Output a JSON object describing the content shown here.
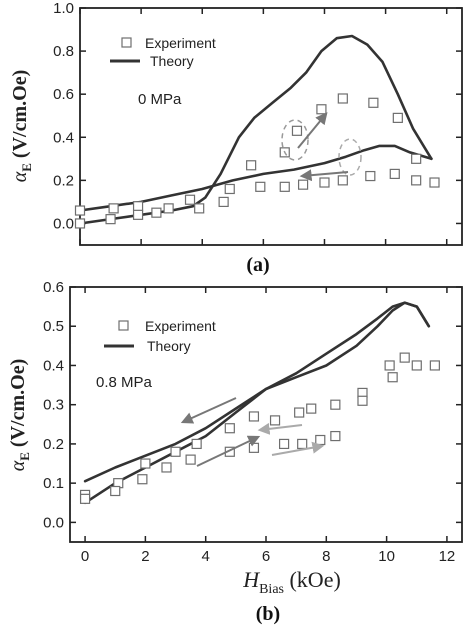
{
  "chart_data": [
    {
      "type": "line",
      "panel_label": "(a)",
      "annotation": "0 MPa",
      "ylabel_symbol": "α",
      "ylabel_sub": "E",
      "ylabel_unit": "(V/cm.Oe)",
      "xlim": [
        0,
        12.5
      ],
      "ylim": [
        -0.1,
        1.0
      ],
      "yticks": [
        0.0,
        0.2,
        0.4,
        0.6,
        0.8,
        1.0
      ],
      "ytick_labels": [
        "0.0",
        "0.2",
        "0.4",
        "0.6",
        "0.8",
        "1.0"
      ],
      "xticks": [
        0,
        2,
        4,
        6,
        8,
        10,
        12
      ],
      "legend": {
        "position": "top-left",
        "items": [
          "Experiment",
          "Theory"
        ]
      },
      "series": [
        {
          "name": "Experiment",
          "marker": "open-square",
          "points": [
            [
              0,
              0.06
            ],
            [
              1.1,
              0.07
            ],
            [
              1.9,
              0.08
            ],
            [
              2.9,
              0.07
            ],
            [
              3.6,
              0.11
            ],
            [
              3.9,
              0.07
            ],
            [
              0,
              0.0
            ],
            [
              1.0,
              0.02
            ],
            [
              1.9,
              0.04
            ],
            [
              2.5,
              0.05
            ],
            [
              4.7,
              0.1
            ],
            [
              5.6,
              0.27
            ],
            [
              6.7,
              0.33
            ],
            [
              7.1,
              0.43
            ],
            [
              7.9,
              0.53
            ],
            [
              8.6,
              0.58
            ],
            [
              9.6,
              0.56
            ],
            [
              10.4,
              0.49
            ],
            [
              11.0,
              0.3
            ],
            [
              11.6,
              0.19
            ],
            [
              11.0,
              0.2
            ],
            [
              10.3,
              0.23
            ],
            [
              9.5,
              0.22
            ],
            [
              8.6,
              0.2
            ],
            [
              8.0,
              0.19
            ],
            [
              7.3,
              0.18
            ],
            [
              6.7,
              0.17
            ],
            [
              5.9,
              0.17
            ],
            [
              4.9,
              0.16
            ]
          ]
        },
        {
          "name": "Theory",
          "style": "solid",
          "curves": [
            [
              [
                0,
                0.06
              ],
              [
                1,
                0.08
              ],
              [
                2,
                0.1
              ],
              [
                3,
                0.13
              ],
              [
                4,
                0.16
              ],
              [
                5,
                0.2
              ],
              [
                6,
                0.23
              ],
              [
                7,
                0.25
              ],
              [
                8,
                0.28
              ],
              [
                8.7,
                0.31
              ],
              [
                9.3,
                0.34
              ],
              [
                9.8,
                0.36
              ],
              [
                10.3,
                0.36
              ],
              [
                10.8,
                0.33
              ],
              [
                11.5,
                0.3
              ]
            ],
            [
              [
                0,
                0.0
              ],
              [
                1,
                0.02
              ],
              [
                2,
                0.04
              ],
              [
                3,
                0.06
              ],
              [
                3.7,
                0.08
              ],
              [
                4.1,
                0.12
              ],
              [
                4.6,
                0.23
              ],
              [
                5.2,
                0.4
              ],
              [
                5.7,
                0.49
              ],
              [
                6.3,
                0.56
              ],
              [
                6.9,
                0.63
              ],
              [
                7.4,
                0.7
              ],
              [
                7.9,
                0.8
              ],
              [
                8.4,
                0.86
              ],
              [
                8.9,
                0.87
              ],
              [
                9.4,
                0.83
              ],
              [
                9.9,
                0.75
              ],
              [
                10.4,
                0.6
              ],
              [
                10.9,
                0.44
              ],
              [
                11.5,
                0.3
              ]
            ]
          ]
        }
      ]
    },
    {
      "type": "line",
      "panel_label": "(b)",
      "annotation": "0.8 MPa",
      "ylabel_symbol": "α",
      "ylabel_sub": "E",
      "ylabel_unit": "(V/cm.Oe)",
      "xlabel_symbol": "H",
      "xlabel_sub": "Bias",
      "xlabel_unit": "(kOe)",
      "xlim": [
        -0.5,
        12.5
      ],
      "ylim": [
        -0.05,
        0.6
      ],
      "yticks": [
        0.0,
        0.1,
        0.2,
        0.3,
        0.4,
        0.5,
        0.6
      ],
      "ytick_labels": [
        "0.0",
        "0.1",
        "0.2",
        "0.3",
        "0.4",
        "0.5",
        "0.6"
      ],
      "xticks": [
        0,
        2,
        4,
        6,
        8,
        10,
        12
      ],
      "xtick_labels": [
        "0",
        "2",
        "4",
        "6",
        "8",
        "10",
        "12"
      ],
      "legend": {
        "position": "top-right",
        "items": [
          "Experiment",
          "Theory"
        ]
      },
      "series": [
        {
          "name": "Experiment",
          "marker": "open-square",
          "points": [
            [
              0,
              0.07
            ],
            [
              1.1,
              0.1
            ],
            [
              2.0,
              0.15
            ],
            [
              3.0,
              0.18
            ],
            [
              3.7,
              0.2
            ],
            [
              4.8,
              0.24
            ],
            [
              5.6,
              0.27
            ],
            [
              0,
              0.06
            ],
            [
              1.0,
              0.08
            ],
            [
              1.9,
              0.11
            ],
            [
              2.7,
              0.14
            ],
            [
              3.5,
              0.16
            ],
            [
              4.8,
              0.18
            ],
            [
              5.6,
              0.19
            ],
            [
              6.3,
              0.26
            ],
            [
              7.1,
              0.28
            ],
            [
              7.5,
              0.29
            ],
            [
              8.3,
              0.3
            ],
            [
              9.2,
              0.33
            ],
            [
              10.1,
              0.4
            ],
            [
              10.6,
              0.42
            ],
            [
              11.0,
              0.4
            ],
            [
              11.6,
              0.4
            ],
            [
              10.2,
              0.37
            ],
            [
              9.2,
              0.31
            ],
            [
              8.3,
              0.22
            ],
            [
              7.8,
              0.21
            ],
            [
              7.2,
              0.2
            ],
            [
              6.6,
              0.2
            ]
          ]
        },
        {
          "name": "Theory",
          "style": "solid",
          "curves": [
            [
              [
                0,
                0.105
              ],
              [
                1,
                0.14
              ],
              [
                2,
                0.17
              ],
              [
                3,
                0.2
              ],
              [
                4,
                0.24
              ],
              [
                5,
                0.29
              ],
              [
                6,
                0.34
              ],
              [
                7,
                0.37
              ],
              [
                8,
                0.4
              ],
              [
                9,
                0.45
              ],
              [
                9.7,
                0.5
              ],
              [
                10.2,
                0.54
              ],
              [
                10.6,
                0.56
              ],
              [
                11.0,
                0.55
              ],
              [
                11.4,
                0.5
              ]
            ],
            [
              [
                0,
                0.05
              ],
              [
                1,
                0.1
              ],
              [
                2,
                0.14
              ],
              [
                3,
                0.18
              ],
              [
                4,
                0.22
              ],
              [
                5,
                0.28
              ],
              [
                6,
                0.34
              ],
              [
                7,
                0.38
              ],
              [
                8,
                0.43
              ],
              [
                9,
                0.48
              ],
              [
                9.7,
                0.52
              ],
              [
                10.2,
                0.55
              ],
              [
                10.6,
                0.56
              ],
              [
                11.0,
                0.55
              ],
              [
                11.4,
                0.5
              ]
            ]
          ]
        }
      ]
    }
  ],
  "colors": {
    "axis": "#222222",
    "theory": "#333333",
    "marker": "#6e6e6e",
    "arrow_dark": "#777777",
    "arrow_light": "#aaaaaa"
  }
}
